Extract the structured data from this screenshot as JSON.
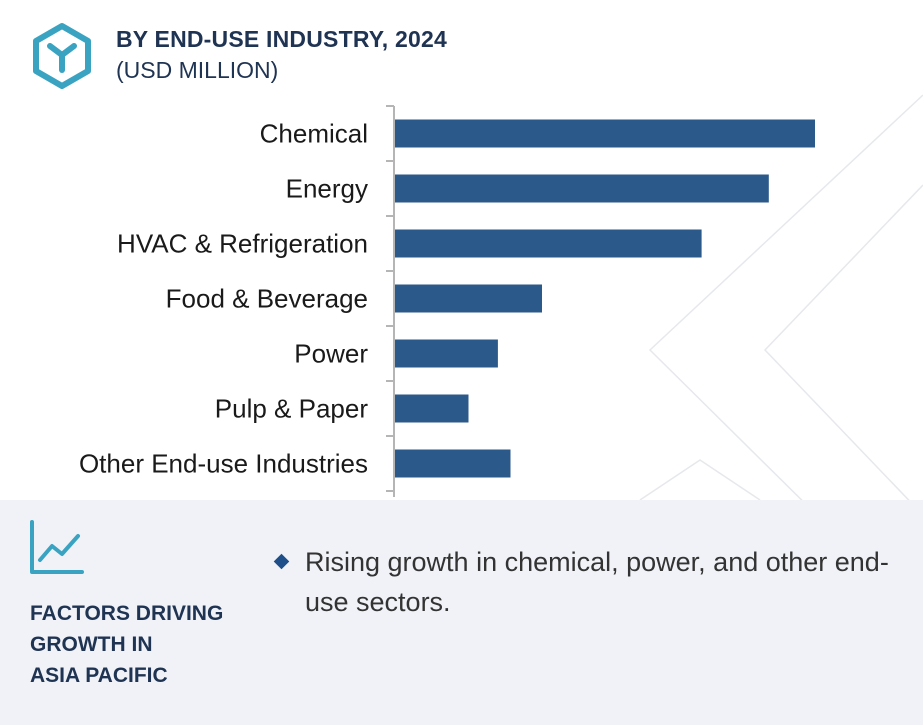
{
  "header": {
    "title": "BY END-USE INDUSTRY, 2024",
    "subtitle": "(USD MILLION)",
    "logo_icon": "hexagon-y-logo-icon"
  },
  "chart_data": {
    "type": "bar",
    "orientation": "horizontal",
    "title": "BY END-USE INDUSTRY, 2024",
    "subtitle": "(USD MILLION)",
    "categories": [
      "Chemical",
      "Energy",
      "HVAC & Refrigeration",
      "Food & Beverage",
      "Power",
      "Pulp & Paper",
      "Other End-use Industries"
    ],
    "values": [
      100,
      89,
      73,
      35,
      24.5,
      17.5,
      27.5
    ],
    "xlim": [
      0,
      100
    ],
    "grid": false,
    "legend": "none",
    "bar_color": "#2b5a8a",
    "axis_color": "#b5b5b5"
  },
  "footer": {
    "icon": "trend-line-icon",
    "heading_lines": [
      "FACTORS DRIVING",
      "GROWTH IN",
      "ASIA PACIFIC"
    ],
    "bullet": "Rising growth in chemical, power, and other end-use sectors.",
    "accent_color": "#3aa3c2",
    "bullet_color": "#1e4f8a"
  }
}
